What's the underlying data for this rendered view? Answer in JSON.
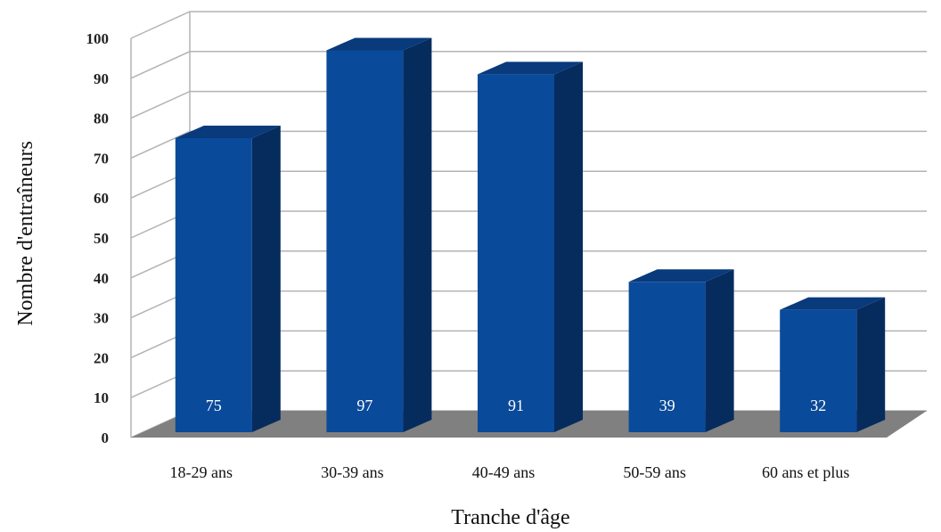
{
  "chart_data": {
    "type": "bar",
    "title": "",
    "xlabel": "Tranche d'âge",
    "ylabel": "Nombre d'entraîneurs",
    "categories": [
      "18-29 ans",
      "30-39 ans",
      "40-49 ans",
      "50-59 ans",
      "60 ans et plus"
    ],
    "values": [
      75,
      97,
      91,
      39,
      32
    ],
    "data_labels": [
      "75",
      "97",
      "91",
      "39",
      "32"
    ],
    "ylim": [
      0,
      100
    ],
    "yticks": [
      "0",
      "10",
      "20",
      "30",
      "40",
      "50",
      "60",
      "70",
      "80",
      "90",
      "100"
    ],
    "grid": true,
    "legend": "none",
    "style": "3d-column",
    "colors": {
      "bar_front": "#0a4a9a",
      "bar_side": "#062c5e",
      "bar_top": "#083a7c",
      "floor": "#808080",
      "grid": "#b3b3b3"
    }
  }
}
